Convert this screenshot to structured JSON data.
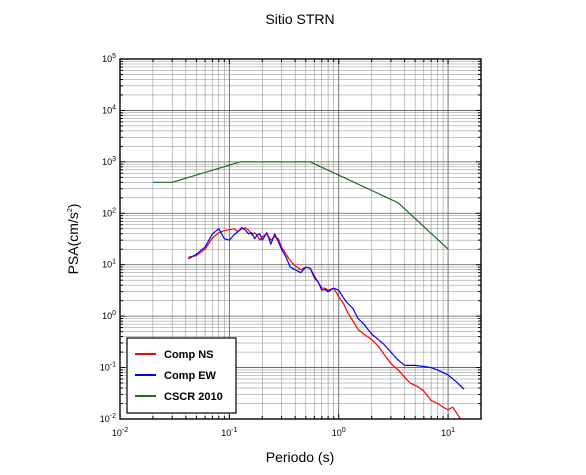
{
  "chart_data": {
    "type": "line",
    "title": "Sitio STRN",
    "xlabel": "Periodo (s)",
    "ylabel": {
      "base": "PSA(cm/s",
      "sup": "2",
      "tail": ")"
    },
    "x_scale": "log",
    "y_scale": "log",
    "xlim": [
      0.01,
      20
    ],
    "ylim": [
      0.01,
      100000
    ],
    "grid": true,
    "legend_position": "bottom-left",
    "x_ticks": [
      {
        "base": "10",
        "exp": "-2",
        "value": 0.01
      },
      {
        "base": "10",
        "exp": "-1",
        "value": 0.1
      },
      {
        "base": "10",
        "exp": "0",
        "value": 1
      },
      {
        "base": "10",
        "exp": "1",
        "value": 10
      }
    ],
    "y_ticks": [
      {
        "base": "10",
        "exp": "-2",
        "value": 0.01
      },
      {
        "base": "10",
        "exp": "-1",
        "value": 0.1
      },
      {
        "base": "10",
        "exp": "0",
        "value": 1
      },
      {
        "base": "10",
        "exp": "1",
        "value": 10
      },
      {
        "base": "10",
        "exp": "2",
        "value": 100
      },
      {
        "base": "10",
        "exp": "3",
        "value": 1000
      },
      {
        "base": "10",
        "exp": "4",
        "value": 10000
      },
      {
        "base": "10",
        "exp": "5",
        "value": 100000
      }
    ],
    "series": [
      {
        "name": "Comp NS",
        "color": "#ff0000",
        "x": [
          0.042,
          0.05,
          0.06,
          0.07,
          0.08,
          0.09,
          0.1,
          0.11,
          0.12,
          0.13,
          0.14,
          0.15,
          0.16,
          0.17,
          0.18,
          0.19,
          0.2,
          0.22,
          0.24,
          0.26,
          0.28,
          0.3,
          0.33,
          0.36,
          0.4,
          0.45,
          0.5,
          0.55,
          0.6,
          0.65,
          0.7,
          0.75,
          0.8,
          0.9,
          1.0,
          1.1,
          1.2,
          1.35,
          1.5,
          1.7,
          2.0,
          2.3,
          2.6,
          3.0,
          3.5,
          4.0,
          4.5,
          5.0,
          5.5,
          6.0,
          6.5,
          7.0,
          8.0,
          9.0,
          10.0,
          11.0,
          12.0,
          13.0
        ],
        "y": [
          14,
          15,
          20,
          33,
          42,
          46,
          48,
          50,
          44,
          50,
          52,
          47,
          38,
          42,
          37,
          30,
          35,
          40,
          30,
          35,
          32,
          22,
          16,
          12,
          9.5,
          8,
          9,
          8.5,
          6,
          4.5,
          3.5,
          3.5,
          3.2,
          3.5,
          2.4,
          1.8,
          1.2,
          0.8,
          0.55,
          0.45,
          0.35,
          0.26,
          0.18,
          0.12,
          0.09,
          0.065,
          0.05,
          0.045,
          0.04,
          0.035,
          0.028,
          0.023,
          0.02,
          0.017,
          0.015,
          0.017,
          0.013,
          0.01
        ]
      },
      {
        "name": "Comp EW",
        "color": "#0000ff",
        "x": [
          0.042,
          0.05,
          0.06,
          0.07,
          0.08,
          0.09,
          0.1,
          0.11,
          0.12,
          0.13,
          0.14,
          0.15,
          0.16,
          0.17,
          0.18,
          0.19,
          0.2,
          0.22,
          0.24,
          0.26,
          0.28,
          0.3,
          0.33,
          0.36,
          0.4,
          0.45,
          0.5,
          0.55,
          0.6,
          0.65,
          0.7,
          0.75,
          0.8,
          0.9,
          1.0,
          1.1,
          1.2,
          1.35,
          1.5,
          1.7,
          2.0,
          2.3,
          2.6,
          3.0,
          3.5,
          4.0,
          4.5,
          5.0,
          6.0,
          7.0,
          8.0,
          10.0,
          12.0,
          14.0
        ],
        "y": [
          13,
          16,
          22,
          40,
          50,
          32,
          30,
          38,
          44,
          53,
          47,
          40,
          42,
          32,
          38,
          40,
          30,
          42,
          25,
          40,
          28,
          20,
          14,
          9,
          8,
          7,
          9,
          8.5,
          5.5,
          4.6,
          3.2,
          3.3,
          3.0,
          3.5,
          3.2,
          2.3,
          1.8,
          1.4,
          0.9,
          0.7,
          0.45,
          0.35,
          0.28,
          0.2,
          0.14,
          0.11,
          0.11,
          0.11,
          0.105,
          0.1,
          0.09,
          0.072,
          0.052,
          0.038
        ]
      },
      {
        "name": "CSCR 2010",
        "color": "#1a6b1a",
        "x": [
          0.02,
          0.03,
          0.125,
          0.55,
          3.5,
          10.0
        ],
        "y": [
          400,
          400,
          1000,
          1000,
          160,
          20
        ]
      }
    ]
  }
}
